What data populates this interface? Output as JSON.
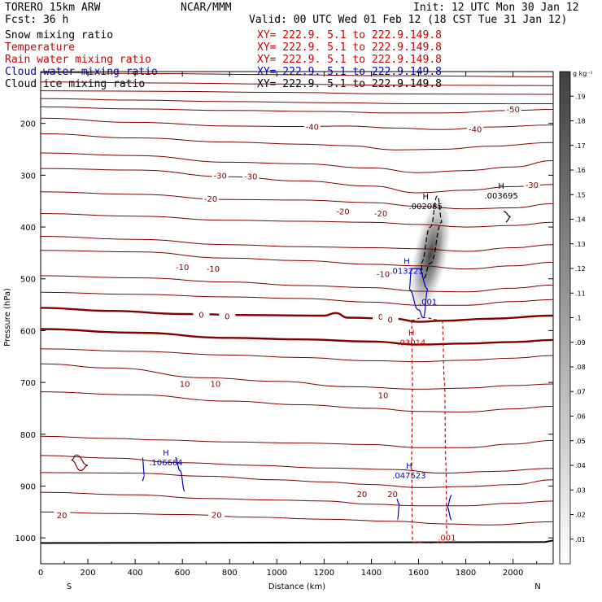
{
  "header": {
    "model": "TORERO  15km ARW",
    "center": "NCAR/MMM",
    "init": "Init: 12 UTC Mon 30 Jan 12",
    "fcst": "Fcst:   36 h",
    "valid": "Valid: 00 UTC Wed 01 Feb 12 (18 CST Tue 31 Jan 12)"
  },
  "fields": [
    {
      "name": "Snow mixing ratio",
      "xy": "XY= 222.9.  5.1 to 222.9.149.8",
      "color": "#000000"
    },
    {
      "name": "Temperature",
      "xy": "XY= 222.9.  5.1 to 222.9.149.8",
      "color": "#cc0000"
    },
    {
      "name": "Rain water mixing ratio",
      "xy": "XY= 222.9.  5.1 to 222.9.149.8",
      "color": "#cc0000"
    },
    {
      "name": "Cloud water mixing ratio",
      "xy": "XY= 222.9.  5.1 to 222.9.149.8",
      "color": "#0000cc"
    },
    {
      "name": "Cloud ice mixing ratio",
      "xy": "XY= 222.9.  5.1 to 222.9.149.8",
      "color": "#000000"
    }
  ],
  "chart_data": {
    "type": "contour",
    "xlabel": "Distance (km)",
    "ylabel": "Pressure (hPa)",
    "xlim": [
      0,
      2170
    ],
    "ylim": [
      1050,
      100
    ],
    "xticks": [
      0,
      200,
      400,
      600,
      800,
      1000,
      1200,
      1400,
      1600,
      1800,
      2000
    ],
    "yticks": [
      200,
      300,
      400,
      500,
      600,
      700,
      800,
      900,
      1000
    ],
    "end_labels": {
      "left": "S",
      "right": "N"
    },
    "colorbar": {
      "unit": "g kg⁻¹",
      "levels": [
        ".01",
        ".02",
        ".03",
        ".04",
        ".05",
        ".06",
        ".07",
        ".08",
        ".09",
        ".1",
        ".11",
        ".12",
        ".13",
        ".14",
        ".15",
        ".16",
        ".17",
        ".18",
        ".19"
      ],
      "range": [
        0,
        0.2
      ]
    },
    "snow_shading": {
      "center_km": 1650,
      "center_hpa": 455,
      "peak": 0.19
    },
    "temperature_contours": [
      {
        "value": -60,
        "points": [
          [
            0,
            102
          ],
          [
            500,
            104
          ],
          [
            1000,
            106
          ],
          [
            1500,
            108
          ],
          [
            2170,
            110
          ]
        ]
      },
      {
        "value": -60,
        "points": [
          [
            0,
            120
          ],
          [
            500,
            122
          ],
          [
            1000,
            124
          ],
          [
            1500,
            126
          ],
          [
            2170,
            127
          ]
        ]
      },
      {
        "value": -60,
        "points": [
          [
            0,
            137
          ],
          [
            500,
            138
          ],
          [
            1000,
            140
          ],
          [
            1500,
            143
          ],
          [
            2170,
            144
          ]
        ]
      },
      {
        "value": -60,
        "points": [
          [
            0,
            152
          ],
          [
            400,
            155
          ],
          [
            800,
            158
          ],
          [
            1200,
            160
          ],
          [
            1600,
            162
          ],
          [
            2170,
            162
          ]
        ]
      },
      {
        "value": -50,
        "points": [
          [
            0,
            168
          ],
          [
            400,
            172
          ],
          [
            800,
            175
          ],
          [
            1200,
            177
          ],
          [
            1500,
            180
          ],
          [
            1700,
            180
          ],
          [
            2000,
            175
          ],
          [
            2170,
            173
          ]
        ]
      },
      {
        "value": -40,
        "points": [
          [
            0,
            190
          ],
          [
            400,
            198
          ],
          [
            800,
            205
          ],
          [
            1100,
            206
          ],
          [
            1300,
            205
          ],
          [
            1500,
            209
          ],
          [
            1700,
            212
          ],
          [
            1900,
            207
          ],
          [
            2170,
            203
          ]
        ]
      },
      {
        "value": -40,
        "points": [
          [
            0,
            220
          ],
          [
            400,
            228
          ],
          [
            800,
            236
          ],
          [
            1100,
            240
          ],
          [
            1300,
            243
          ],
          [
            1500,
            251
          ],
          [
            1700,
            250
          ],
          [
            1900,
            244
          ],
          [
            2170,
            237
          ]
        ]
      },
      {
        "value": -30,
        "points": [
          [
            0,
            257
          ],
          [
            400,
            262
          ],
          [
            800,
            275
          ],
          [
            1100,
            278
          ],
          [
            1400,
            286
          ],
          [
            1600,
            295
          ],
          [
            1800,
            291
          ],
          [
            2000,
            284
          ],
          [
            2170,
            272
          ]
        ]
      },
      {
        "value": -30,
        "points": [
          [
            0,
            287
          ],
          [
            400,
            290
          ],
          [
            800,
            303
          ],
          [
            1100,
            311
          ],
          [
            1400,
            321
          ],
          [
            1600,
            334
          ],
          [
            1800,
            329
          ],
          [
            2000,
            322
          ],
          [
            2170,
            318
          ]
        ]
      },
      {
        "value": -20,
        "points": [
          [
            0,
            332
          ],
          [
            400,
            337
          ],
          [
            800,
            347
          ],
          [
            1100,
            348
          ],
          [
            1400,
            353
          ],
          [
            1600,
            360
          ],
          [
            1800,
            365
          ],
          [
            2000,
            363
          ],
          [
            2170,
            355
          ]
        ]
      },
      {
        "value": -20,
        "points": [
          [
            0,
            374
          ],
          [
            400,
            379
          ],
          [
            800,
            387
          ],
          [
            1100,
            389
          ],
          [
            1400,
            391
          ],
          [
            1600,
            395
          ],
          [
            1800,
            400
          ],
          [
            2000,
            397
          ],
          [
            2170,
            391
          ]
        ]
      },
      {
        "value": -10,
        "points": [
          [
            0,
            418
          ],
          [
            400,
            424
          ],
          [
            800,
            434
          ],
          [
            1100,
            438
          ],
          [
            1400,
            440
          ],
          [
            1600,
            442
          ],
          [
            1800,
            447
          ],
          [
            2000,
            440
          ],
          [
            2170,
            434
          ]
        ]
      },
      {
        "value": -10,
        "points": [
          [
            0,
            445
          ],
          [
            400,
            448
          ],
          [
            800,
            460
          ],
          [
            1100,
            465
          ],
          [
            1400,
            472
          ],
          [
            1600,
            475
          ],
          [
            1800,
            481
          ],
          [
            2000,
            475
          ],
          [
            2170,
            468
          ]
        ]
      },
      {
        "value": -10,
        "points": [
          [
            0,
            494
          ],
          [
            400,
            498
          ],
          [
            800,
            506
          ],
          [
            1100,
            513
          ],
          [
            1400,
            517
          ],
          [
            1600,
            524
          ],
          [
            1800,
            525
          ],
          [
            2000,
            518
          ],
          [
            2170,
            512
          ]
        ]
      },
      {
        "value": -10,
        "points": [
          [
            0,
            526
          ],
          [
            400,
            530
          ],
          [
            800,
            535
          ],
          [
            1100,
            538
          ],
          [
            1400,
            545
          ],
          [
            1600,
            551
          ],
          [
            1800,
            551
          ],
          [
            2000,
            544
          ],
          [
            2170,
            540
          ]
        ]
      },
      {
        "value": 0,
        "points": [
          [
            0,
            556
          ],
          [
            300,
            562
          ],
          [
            600,
            568
          ],
          [
            900,
            570
          ],
          [
            1200,
            571
          ],
          [
            1250,
            566
          ],
          [
            1300,
            575
          ],
          [
            1500,
            577
          ],
          [
            1600,
            583
          ],
          [
            1700,
            581
          ],
          [
            1900,
            577
          ],
          [
            2170,
            571
          ]
        ]
      },
      {
        "value": 0,
        "points": [
          [
            0,
            597
          ],
          [
            400,
            604
          ],
          [
            800,
            614
          ],
          [
            1100,
            617
          ],
          [
            1400,
            621
          ],
          [
            1600,
            627
          ],
          [
            1800,
            625
          ],
          [
            2000,
            622
          ],
          [
            2170,
            618
          ]
        ]
      },
      {
        "value": 10,
        "points": [
          [
            0,
            635
          ],
          [
            400,
            640
          ],
          [
            800,
            647
          ],
          [
            1100,
            652
          ],
          [
            1400,
            658
          ],
          [
            1600,
            660
          ],
          [
            1800,
            657
          ],
          [
            2000,
            653
          ],
          [
            2170,
            648
          ]
        ]
      },
      {
        "value": 10,
        "points": [
          [
            0,
            664
          ],
          [
            300,
            672
          ],
          [
            700,
            691
          ],
          [
            1000,
            698
          ],
          [
            1300,
            708
          ],
          [
            1600,
            713
          ],
          [
            1800,
            711
          ],
          [
            2000,
            706
          ],
          [
            2170,
            703
          ]
        ]
      },
      {
        "value": 10,
        "points": [
          [
            0,
            718
          ],
          [
            400,
            724
          ],
          [
            800,
            736
          ],
          [
            1100,
            743
          ],
          [
            1400,
            750
          ],
          [
            1600,
            756
          ],
          [
            1800,
            757
          ],
          [
            2000,
            751
          ],
          [
            2170,
            746
          ]
        ]
      },
      {
        "value": 20,
        "points": [
          [
            0,
            804
          ],
          [
            300,
            808
          ],
          [
            500,
            811
          ],
          [
            800,
            815
          ],
          [
            1100,
            817
          ],
          [
            1400,
            820
          ],
          [
            1600,
            826
          ],
          [
            1800,
            826
          ],
          [
            2000,
            819
          ],
          [
            2170,
            812
          ]
        ]
      },
      {
        "value": 20,
        "points": [
          [
            0,
            841
          ],
          [
            300,
            846
          ],
          [
            600,
            855
          ],
          [
            900,
            860
          ],
          [
            1200,
            865
          ],
          [
            1500,
            868
          ],
          [
            1700,
            875
          ],
          [
            1900,
            872
          ],
          [
            2170,
            866
          ]
        ]
      },
      {
        "value": 20,
        "points": [
          [
            0,
            874
          ],
          [
            400,
            875
          ],
          [
            700,
            881
          ],
          [
            1000,
            888
          ],
          [
            1200,
            892
          ],
          [
            1400,
            897
          ],
          [
            1600,
            903
          ],
          [
            1800,
            901
          ],
          [
            2000,
            897
          ],
          [
            2170,
            888
          ]
        ]
      },
      {
        "value": 20,
        "points": [
          [
            0,
            912
          ],
          [
            400,
            917
          ],
          [
            700,
            924
          ],
          [
            1000,
            927
          ],
          [
            1200,
            929
          ],
          [
            1400,
            935
          ],
          [
            1600,
            938
          ],
          [
            1800,
            938
          ],
          [
            2000,
            933
          ],
          [
            2170,
            929
          ]
        ]
      },
      {
        "value": 20,
        "points": [
          [
            0,
            950
          ],
          [
            300,
            953
          ],
          [
            600,
            955
          ],
          [
            900,
            960
          ],
          [
            1200,
            964
          ],
          [
            1500,
            968
          ],
          [
            1700,
            973
          ],
          [
            1900,
            975
          ],
          [
            2170,
            969
          ]
        ]
      }
    ],
    "contour_labels": [
      {
        "text": "-50",
        "x": 2000,
        "y": 172,
        "color": "#800000"
      },
      {
        "text": "-40",
        "x": 1150,
        "y": 206,
        "color": "#800000"
      },
      {
        "text": "-40",
        "x": 1840,
        "y": 211,
        "color": "#800000"
      },
      {
        "text": "-30",
        "x": 760,
        "y": 300,
        "color": "#800000"
      },
      {
        "text": "-30",
        "x": 890,
        "y": 302,
        "color": "#800000"
      },
      {
        "text": "-30",
        "x": 2080,
        "y": 318,
        "color": "#800000"
      },
      {
        "text": "-20",
        "x": 720,
        "y": 345,
        "color": "#800000"
      },
      {
        "text": "-20",
        "x": 1280,
        "y": 369,
        "color": "#800000"
      },
      {
        "text": "-20",
        "x": 1440,
        "y": 373,
        "color": "#800000"
      },
      {
        "text": "-10",
        "x": 600,
        "y": 477,
        "color": "#800000"
      },
      {
        "text": "-10",
        "x": 730,
        "y": 480,
        "color": "#800000"
      },
      {
        "text": "-10",
        "x": 1450,
        "y": 490,
        "color": "#800000"
      },
      {
        "text": "0",
        "x": 680,
        "y": 569,
        "color": "#800000"
      },
      {
        "text": "0",
        "x": 790,
        "y": 572,
        "color": "#800000"
      },
      {
        "text": "0",
        "x": 1440,
        "y": 573,
        "color": "#800000"
      },
      {
        "text": "10",
        "x": 610,
        "y": 702,
        "color": "#800000"
      },
      {
        "text": "10",
        "x": 740,
        "y": 702,
        "color": "#800000"
      },
      {
        "text": "10",
        "x": 1450,
        "y": 724,
        "color": "#800000"
      },
      {
        "text": "20",
        "x": 90,
        "y": 956,
        "color": "#800000"
      },
      {
        "text": "20",
        "x": 745,
        "y": 955,
        "color": "#800000"
      },
      {
        "text": "20",
        "x": 1360,
        "y": 915,
        "color": "#800000"
      },
      {
        "text": "20",
        "x": 1490,
        "y": 915,
        "color": "#800000"
      },
      {
        "text": "0",
        "x": 1480,
        "y": 578,
        "color": "#800000"
      }
    ],
    "maxima": [
      {
        "field": "snow",
        "label": "H",
        "value": ".002085",
        "x": 1630,
        "y": 365,
        "color": "#000000"
      },
      {
        "field": "ice",
        "label": "H",
        "value": ".003695",
        "x": 1950,
        "y": 345,
        "color": "#000000"
      },
      {
        "field": "cloud_water",
        "label": "H",
        "value": ".013221",
        "x": 1550,
        "y": 490,
        "color": "#0000cc"
      },
      {
        "field": "cloud_water",
        "label": "",
        "value": ".001",
        "x": 1640,
        "y": 550,
        "color": "#0000cc"
      },
      {
        "field": "rain",
        "label": "H",
        "value": ".03014",
        "x": 1570,
        "y": 628,
        "color": "#cc0000"
      },
      {
        "field": "cloud_water",
        "label": "H",
        "value": ".106664",
        "x": 530,
        "y": 860,
        "color": "#0000cc"
      },
      {
        "field": "cloud_water",
        "label": "H",
        "value": ".047523",
        "x": 1560,
        "y": 885,
        "color": "#0000cc"
      },
      {
        "field": "rain",
        "label": "",
        "value": ".001",
        "x": 1720,
        "y": 1005,
        "color": "#cc0000"
      }
    ]
  }
}
